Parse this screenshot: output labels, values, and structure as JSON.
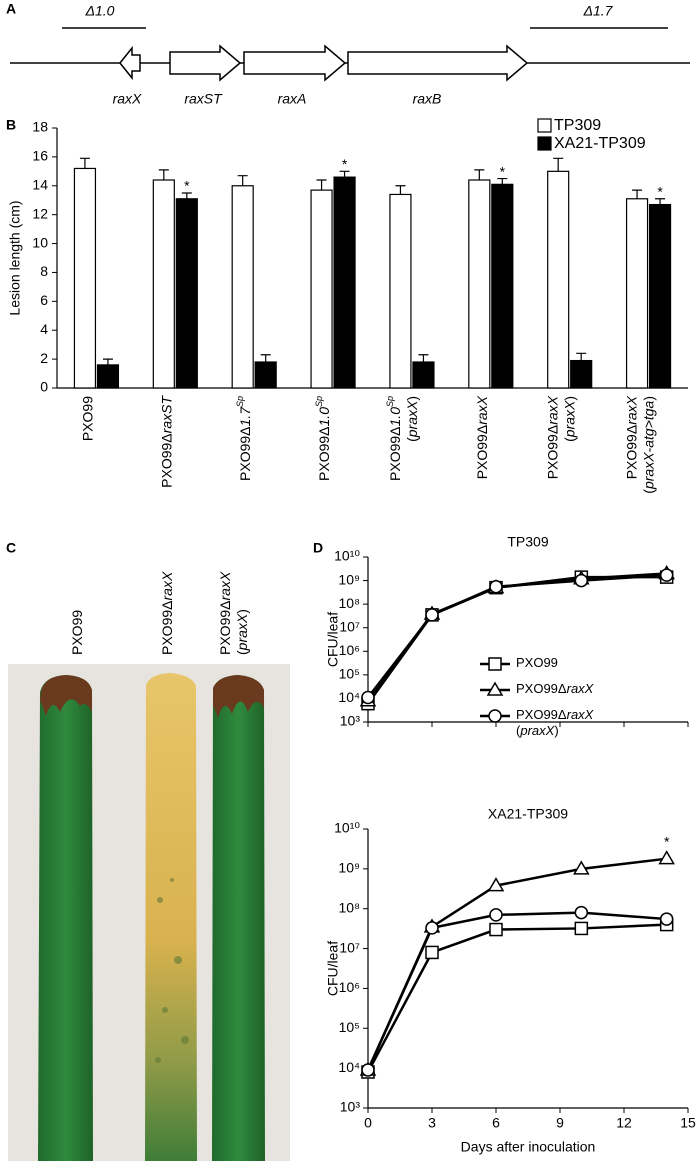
{
  "panel_a": {
    "label": "A",
    "regions": [
      "Δ1.0",
      "Δ1.7"
    ],
    "genes": [
      "raxX",
      "raxST",
      "raxA",
      "raxB"
    ]
  },
  "chart_data": [
    {
      "panel": "B",
      "type": "bar",
      "ylabel": "Lesion length (cm)",
      "categories": [
        "PXO99",
        "PXO99ΔraxST",
        "PXO99Δ1.7Sp",
        "PXO99Δ1.0Sp",
        [
          "PXO99Δ1.0Sp",
          "(praxX)"
        ],
        "PXO99ΔraxX",
        [
          "PXO99ΔraxX",
          "(praxX)"
        ],
        [
          "PXO99ΔraxX",
          "(praxX-atg>tga)"
        ]
      ],
      "series": [
        {
          "name": "TP309",
          "color": "#ffffff",
          "values": [
            15.2,
            14.4,
            14.0,
            13.7,
            13.4,
            14.4,
            15.0,
            13.1
          ],
          "errors": [
            0.7,
            0.7,
            0.7,
            0.7,
            0.6,
            0.7,
            0.9,
            0.6
          ]
        },
        {
          "name": "XA21-TP309",
          "color": "#000000",
          "values": [
            1.6,
            13.1,
            1.8,
            14.6,
            1.8,
            14.1,
            1.9,
            12.7
          ],
          "errors": [
            0.4,
            0.4,
            0.5,
            0.4,
            0.5,
            0.4,
            0.5,
            0.4
          ],
          "markers": [
            null,
            "*",
            null,
            "*",
            null,
            "*",
            null,
            "*"
          ]
        }
      ],
      "ylim": [
        0,
        18
      ],
      "yticks": [
        0,
        2,
        4,
        6,
        8,
        10,
        12,
        14,
        16,
        18
      ],
      "legend": "upper right"
    },
    {
      "panel": "D",
      "type": "line",
      "title": "TP309",
      "ylabel": "CFU/leaf",
      "log_y": true,
      "x": [
        0,
        3,
        6,
        10,
        14
      ],
      "xlim": [
        0,
        15
      ],
      "xticks": [
        0,
        3,
        6,
        9,
        12,
        15
      ],
      "xtick_labels": false,
      "ylim": [
        1000,
        10000000000
      ],
      "yticks": [
        {
          "value": 1000,
          "label": "10³"
        },
        {
          "value": 10000,
          "label": "10⁴"
        },
        {
          "value": 100000,
          "label": "10⁵"
        },
        {
          "value": 1000000,
          "label": "10⁶"
        },
        {
          "value": 10000000,
          "label": "10⁷"
        },
        {
          "value": 100000000,
          "label": "10⁸"
        },
        {
          "value": 1000000000,
          "label": "10⁹"
        },
        {
          "value": 10000000000,
          "label": "10¹⁰"
        }
      ],
      "legend": "lower right",
      "series": [
        {
          "name": "PXO99",
          "marker": "square",
          "color": "#000000",
          "values": [
            6000,
            35000000,
            500000000,
            1400000000,
            1400000000
          ]
        },
        {
          "name": "PXO99ΔraxX",
          "marker": "triangle",
          "color": "#000000",
          "values": [
            8000,
            38000000,
            500000000,
            1200000000,
            2000000000
          ]
        },
        {
          "name": [
            "PXO99ΔraxX",
            "(praxX)"
          ],
          "marker": "circle",
          "color": "#000000",
          "values": [
            11000,
            35000000,
            550000000,
            1000000000,
            1700000000
          ]
        }
      ]
    },
    {
      "type": "line",
      "title": "XA21-TP309",
      "ylabel": "CFU/leaf",
      "xlabel": "Days after inoculation",
      "log_y": true,
      "x": [
        0,
        3,
        6,
        10,
        14
      ],
      "xlim": [
        0,
        15
      ],
      "xticks": [
        0,
        3,
        6,
        9,
        12,
        15
      ],
      "xtick_labels": true,
      "ylim": [
        1000,
        10000000000
      ],
      "yticks": [
        {
          "value": 1000,
          "label": "10³"
        },
        {
          "value": 10000,
          "label": "10⁴"
        },
        {
          "value": 100000,
          "label": "10⁵"
        },
        {
          "value": 1000000,
          "label": "10⁶"
        },
        {
          "value": 10000000,
          "label": "10⁷"
        },
        {
          "value": 100000000,
          "label": "10⁸"
        },
        {
          "value": 1000000000,
          "label": "10⁹"
        },
        {
          "value": 10000000000,
          "label": "10¹⁰"
        }
      ],
      "series": [
        {
          "marker": "square",
          "color": "#000000",
          "values": [
            8000,
            8000000,
            30000000,
            32000000,
            40000000
          ]
        },
        {
          "marker": "triangle",
          "color": "#000000",
          "values": [
            9000,
            35000000,
            380000000,
            1000000000,
            1800000000
          ],
          "markers": [
            null,
            null,
            null,
            null,
            "*"
          ]
        },
        {
          "marker": "circle",
          "color": "#000000",
          "values": [
            9000,
            33000000,
            70000000,
            80000000,
            55000000
          ]
        }
      ]
    }
  ],
  "panel_c": {
    "label": "C",
    "strains": [
      "PXO99",
      "PXO99ΔraxX",
      [
        "PXO99ΔraxX",
        "(praxX)"
      ]
    ]
  }
}
